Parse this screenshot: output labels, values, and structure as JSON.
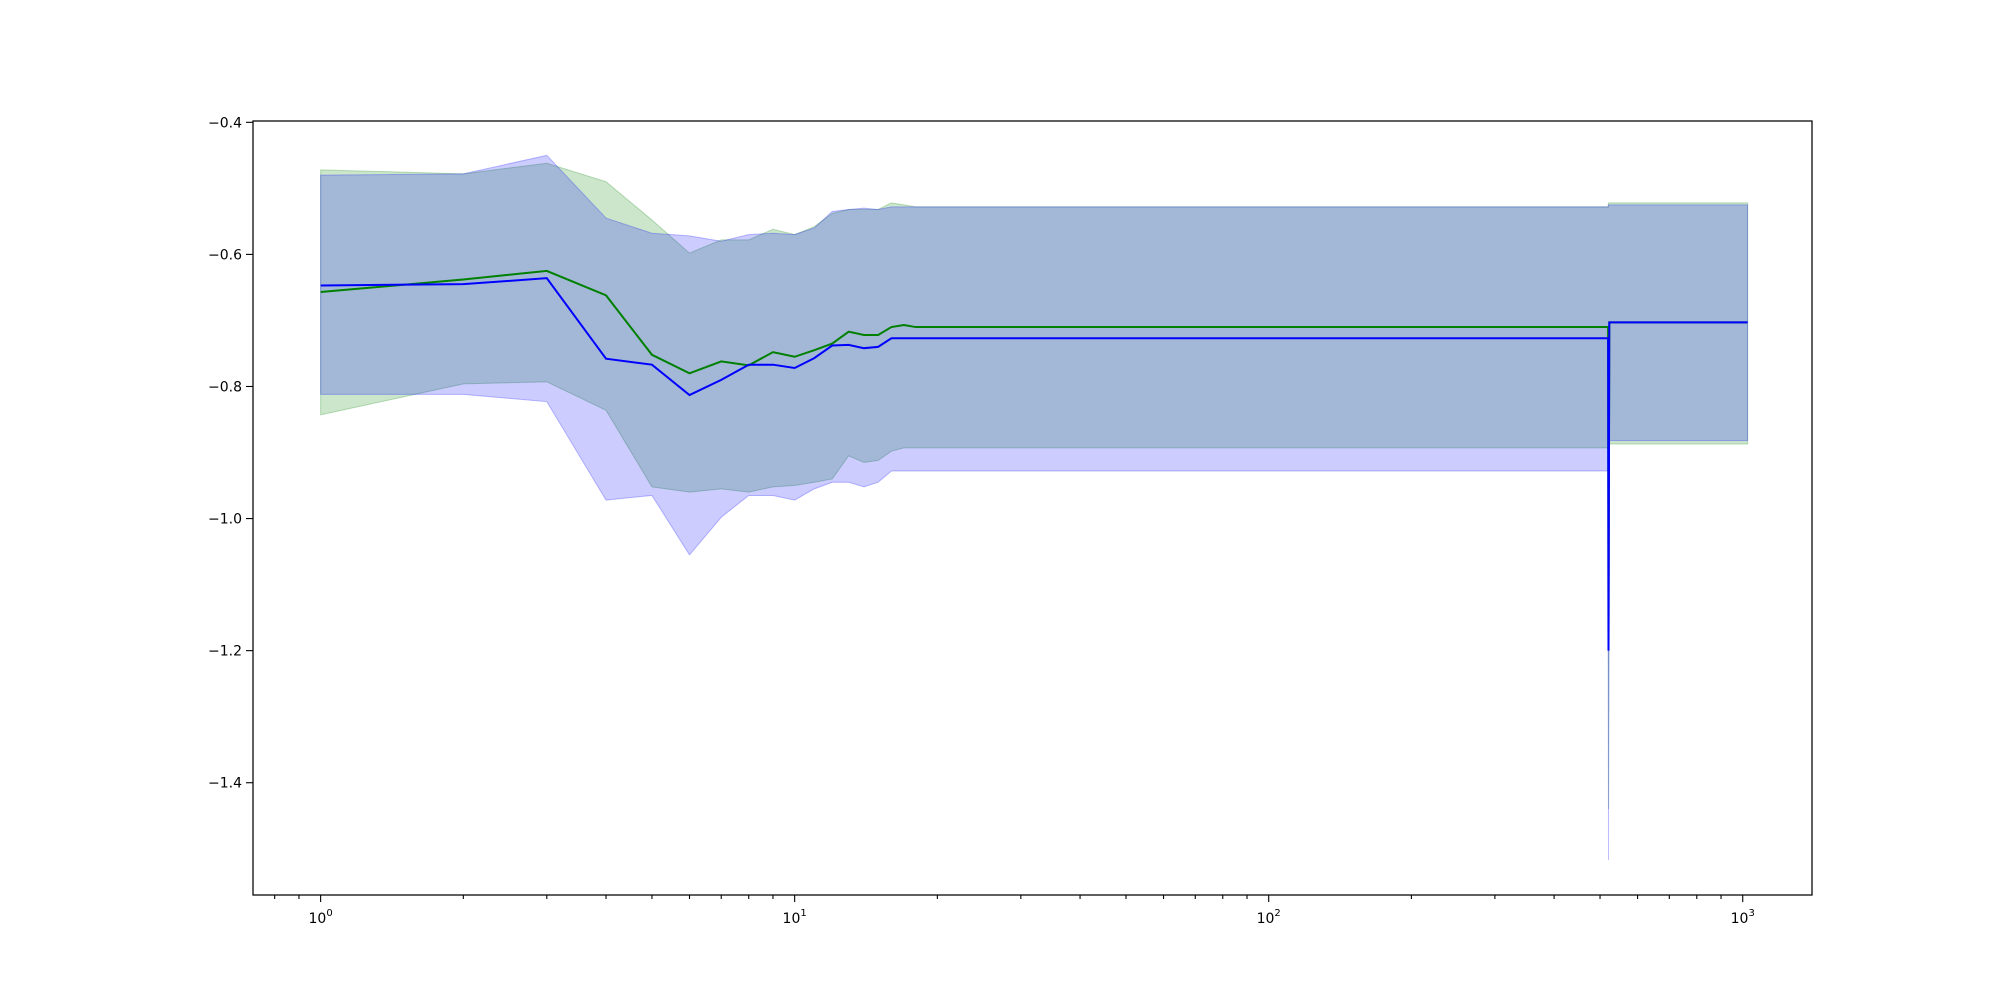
{
  "chart_data": {
    "type": "line",
    "title": "",
    "xlabel": "",
    "ylabel": "",
    "xscale": "log",
    "xlim": [
      0.72,
      1400
    ],
    "ylim": [
      -1.57,
      -0.398
    ],
    "grid": false,
    "legend": "none",
    "x_ticks": [
      {
        "value": 1,
        "base": "10",
        "exp": "0"
      },
      {
        "value": 10,
        "base": "10",
        "exp": "1"
      },
      {
        "value": 100,
        "base": "10",
        "exp": "2"
      },
      {
        "value": 1000,
        "base": "10",
        "exp": "3"
      }
    ],
    "y_ticks": [
      {
        "value": -0.4,
        "label": "−0.4"
      },
      {
        "value": -0.6,
        "label": "−0.6"
      },
      {
        "value": -0.8,
        "label": "−0.8"
      },
      {
        "value": -1.0,
        "label": "−1.0"
      },
      {
        "value": -1.2,
        "label": "−1.2"
      },
      {
        "value": -1.4,
        "label": "−1.4"
      }
    ],
    "bands": [
      {
        "color": "#008000",
        "x": [
          1,
          2,
          3,
          4,
          5,
          6,
          7,
          8,
          9,
          10,
          11,
          12,
          13,
          14,
          15,
          16,
          17,
          18,
          520,
          521,
          523,
          1024
        ],
        "upper": [
          -0.472,
          -0.478,
          -0.462,
          -0.49,
          -0.548,
          -0.598,
          -0.578,
          -0.578,
          -0.562,
          -0.57,
          -0.558,
          -0.538,
          -0.532,
          -0.532,
          -0.532,
          -0.522,
          -0.525,
          -0.528,
          -0.528,
          -0.522,
          -0.522,
          -0.522
        ],
        "lower": [
          -0.843,
          -0.796,
          -0.793,
          -0.836,
          -0.952,
          -0.96,
          -0.955,
          -0.96,
          -0.952,
          -0.95,
          -0.945,
          -0.94,
          -0.905,
          -0.915,
          -0.912,
          -0.898,
          -0.893,
          -0.893,
          -0.893,
          -1.44,
          -0.887,
          -0.887
        ]
      },
      {
        "color": "#0000ff",
        "x": [
          1,
          2,
          3,
          4,
          5,
          6,
          7,
          8,
          9,
          10,
          11,
          12,
          13,
          14,
          15,
          16,
          17,
          18,
          520,
          521,
          523,
          1024
        ],
        "upper": [
          -0.48,
          -0.478,
          -0.45,
          -0.545,
          -0.568,
          -0.572,
          -0.58,
          -0.57,
          -0.568,
          -0.57,
          -0.56,
          -0.535,
          -0.532,
          -0.53,
          -0.532,
          -0.528,
          -0.528,
          -0.528,
          -0.528,
          -0.525,
          -0.525,
          -0.525
        ],
        "lower": [
          -0.812,
          -0.812,
          -0.823,
          -0.972,
          -0.965,
          -1.055,
          -0.998,
          -0.965,
          -0.965,
          -0.972,
          -0.955,
          -0.945,
          -0.945,
          -0.952,
          -0.945,
          -0.928,
          -0.928,
          -0.928,
          -0.928,
          -1.517,
          -0.882,
          -0.882
        ]
      }
    ],
    "series": [
      {
        "color": "#008000",
        "x": [
          1,
          2,
          3,
          4,
          5,
          6,
          7,
          8,
          9,
          10,
          11,
          12,
          13,
          14,
          15,
          16,
          17,
          18,
          520,
          521,
          523,
          1024
        ],
        "values": [
          -0.657,
          -0.638,
          -0.625,
          -0.662,
          -0.752,
          -0.78,
          -0.762,
          -0.768,
          -0.748,
          -0.755,
          -0.745,
          -0.735,
          -0.717,
          -0.722,
          -0.722,
          -0.71,
          -0.707,
          -0.71,
          -0.71,
          -1.2,
          -0.703,
          -0.703
        ]
      },
      {
        "color": "#0000ff",
        "x": [
          1,
          2,
          3,
          4,
          5,
          6,
          7,
          8,
          9,
          10,
          11,
          12,
          13,
          14,
          15,
          16,
          17,
          18,
          520,
          521,
          523,
          1024
        ],
        "values": [
          -0.647,
          -0.645,
          -0.636,
          -0.758,
          -0.767,
          -0.813,
          -0.79,
          -0.767,
          -0.767,
          -0.772,
          -0.757,
          -0.738,
          -0.737,
          -0.742,
          -0.74,
          -0.727,
          -0.727,
          -0.727,
          -0.727,
          -1.2,
          -0.703,
          -0.703
        ]
      }
    ]
  }
}
